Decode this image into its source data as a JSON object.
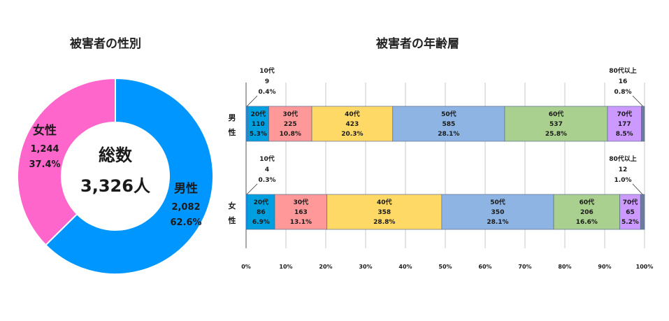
{
  "titles": {
    "donut": "被害者の性別",
    "bar": "被害者の年齢層"
  },
  "chart_data": [
    {
      "type": "pie",
      "style": "donut",
      "title": "被害者の性別",
      "center_label": "総数",
      "center_value": "3,326人",
      "slices": [
        {
          "label": "男性",
          "value": 2082,
          "value_text": "2,082",
          "percent": 62.6,
          "percent_text": "62.6%",
          "color": "#0096ff"
        },
        {
          "label": "女性",
          "value": 1244,
          "value_text": "1,244",
          "percent": 37.4,
          "percent_text": "37.4%",
          "color": "#ff66cc"
        }
      ]
    },
    {
      "type": "bar",
      "style": "stacked-horizontal-100",
      "title": "被害者の年齢層",
      "xlim": [
        0,
        100
      ],
      "ticks": [
        "0%",
        "10%",
        "20%",
        "30%",
        "40%",
        "50%",
        "60%",
        "70%",
        "80%",
        "90%",
        "100%"
      ],
      "grid": true,
      "rows": [
        {
          "label": "男性",
          "segments": [
            {
              "name": "10代",
              "count": "9",
              "pct": 0.4,
              "pct_text": "0.4%",
              "color": "#0096ff",
              "external": true
            },
            {
              "name": "20代",
              "count": "110",
              "pct": 5.3,
              "pct_text": "5.3%",
              "color": "#00a0e0"
            },
            {
              "name": "30代",
              "count": "225",
              "pct": 10.8,
              "pct_text": "10.8%",
              "color": "#ff9999"
            },
            {
              "name": "40代",
              "count": "423",
              "pct": 20.3,
              "pct_text": "20.3%",
              "color": "#ffd966"
            },
            {
              "name": "50代",
              "count": "585",
              "pct": 28.1,
              "pct_text": "28.1%",
              "color": "#8db4e2"
            },
            {
              "name": "60代",
              "count": "537",
              "pct": 25.8,
              "pct_text": "25.8%",
              "color": "#a9d08e"
            },
            {
              "name": "70代",
              "count": "177",
              "pct": 8.5,
              "pct_text": "8.5%",
              "color": "#cc99ff"
            },
            {
              "name": "80代以上",
              "count": "16",
              "pct": 0.8,
              "pct_text": "0.8%",
              "color": "#6e7ba0",
              "external": true
            }
          ]
        },
        {
          "label": "女性",
          "segments": [
            {
              "name": "10代",
              "count": "4",
              "pct": 0.3,
              "pct_text": "0.3%",
              "color": "#0096ff",
              "external": true
            },
            {
              "name": "20代",
              "count": "86",
              "pct": 6.9,
              "pct_text": "6.9%",
              "color": "#00a0e0"
            },
            {
              "name": "30代",
              "count": "163",
              "pct": 13.1,
              "pct_text": "13.1%",
              "color": "#ff9999"
            },
            {
              "name": "40代",
              "count": "358",
              "pct": 28.8,
              "pct_text": "28.8%",
              "color": "#ffd966"
            },
            {
              "name": "50代",
              "count": "350",
              "pct": 28.1,
              "pct_text": "28.1%",
              "color": "#8db4e2"
            },
            {
              "name": "60代",
              "count": "206",
              "pct": 16.6,
              "pct_text": "16.6%",
              "color": "#a9d08e"
            },
            {
              "name": "70代",
              "count": "65",
              "pct": 5.2,
              "pct_text": "5.2%",
              "color": "#cc99ff"
            },
            {
              "name": "80代以上",
              "count": "12",
              "pct": 1.0,
              "pct_text": "1.0%",
              "color": "#6e7ba0",
              "external": true
            }
          ]
        }
      ]
    }
  ]
}
